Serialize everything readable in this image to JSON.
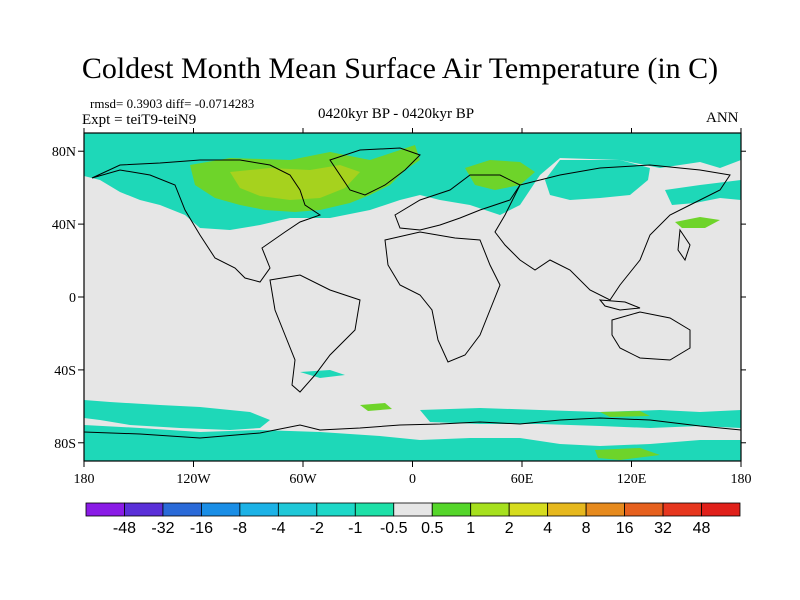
{
  "title": "Coldest Month Mean Surface Air Temperature (in C)",
  "stats": {
    "rmsd_diff": "rmsd= 0.3903  diff= -0.0714283",
    "expt": "Expt = teiT9-teiN9"
  },
  "center_label": "0420kyr BP - 0420kyr BP",
  "season": "ANN",
  "map": {
    "lon_ticks": [
      "180",
      "120W",
      "60W",
      "0",
      "60E",
      "120E",
      "180"
    ],
    "lat_ticks": [
      "80N",
      "40N",
      "0",
      "40S",
      "80S"
    ],
    "background_color": "#e6e6e6"
  },
  "colorbar": {
    "labels": [
      "-48",
      "-32",
      "-16",
      "-8",
      "-4",
      "-2",
      "-1",
      "-0.5",
      "0.5",
      "1",
      "2",
      "4",
      "8",
      "16",
      "32",
      "48"
    ],
    "colors": [
      "#8a1be6",
      "#5a2fd8",
      "#2a6ad8",
      "#1a8ee6",
      "#1cb2e6",
      "#1fc8d8",
      "#1dd8c8",
      "#1de0a8",
      "#e6e6e6",
      "#55d62a",
      "#a6e01e",
      "#d6dc1e",
      "#e6b81e",
      "#e68a1e",
      "#e6601e",
      "#e6361e",
      "#e0201a"
    ]
  },
  "fields": {
    "cool_color": "#1ed8b8",
    "warm_light_color": "#6ed42a",
    "warm_strong_color": "#a6d21e"
  }
}
